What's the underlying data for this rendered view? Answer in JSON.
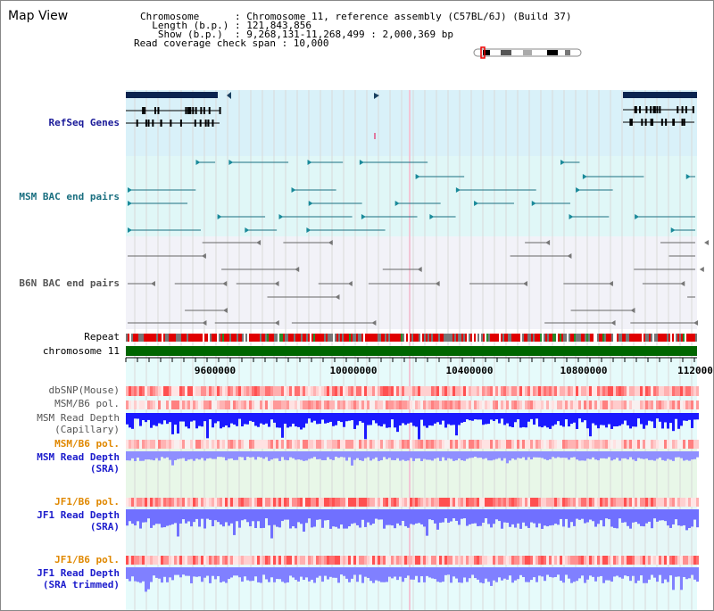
{
  "header": {
    "title": "Map View",
    "info_lines": [
      "Chromosome      : Chromosome 11, reference assembly (C57BL/6J) (Build 37)",
      "  Length (b.p.) : 121,843,856",
      "   Show (b.p.)  : 9,268,131-11,268,499 : 2,000,369 bp",
      "Read coverage check span : 10,000"
    ]
  },
  "tracks": {
    "refseq": "RefSeq Genes",
    "msm_bac": "MSM BAC end pairs",
    "b6n_bac": "B6N BAC end pairs",
    "repeat": "Repeat",
    "chromosome": "chromosome 11",
    "dbsnp": "dbSNP(Mouse)",
    "msm_b6_pol": "MSM/B6 pol.",
    "msm_read_depth_cap_1": "MSM Read Depth",
    "msm_read_depth_cap_2": "(Capillary)",
    "msm_b6_pol_2": "MSM/B6 pol.",
    "msm_read_depth_sra_1": "MSM Read Depth",
    "msm_read_depth_sra_2": "(SRA)",
    "jf1_b6_pol": "JF1/B6 pol.",
    "jf1_read_depth_sra_1": "JF1 Read Depth",
    "jf1_read_depth_sra_2": "(SRA)",
    "jf1_b6_pol_2": "JF1/B6 pol.",
    "jf1_read_depth_trim_1": "JF1 Read Depth",
    "jf1_read_depth_trim_2": "(SRA trimmed)"
  },
  "axis": {
    "ticks": [
      "9600000",
      "10000000",
      "10400000",
      "10800000",
      "112000"
    ]
  },
  "colors": {
    "refseq_bg": "#d9f1f9",
    "msm_bg": "#e0f7f7",
    "b6n_bg": "#f2f2f8",
    "chromosome_bar": "#006600",
    "accent_blue": "#1a1a99",
    "orange": "#e08800",
    "read_depth_blue": "#1a1aff"
  }
}
